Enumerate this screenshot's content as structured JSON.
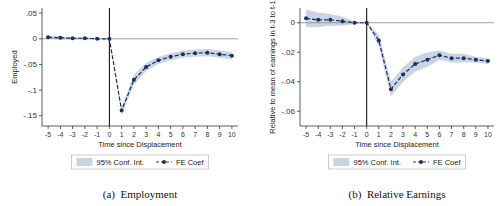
{
  "chart_data": [
    {
      "type": "line",
      "title": "(a)  Employment",
      "x_label": "Time since Displacement",
      "y_label": "Employed",
      "x": [
        -5,
        -4,
        -3,
        -2,
        -1,
        0,
        1,
        2,
        3,
        4,
        5,
        6,
        7,
        8,
        9,
        10
      ],
      "series": [
        {
          "name": "95% Conf. Int.",
          "type": "band",
          "color": "#b8c5dc",
          "lower": [
            0.0,
            -0.001,
            -0.001,
            -0.001,
            -0.001,
            0.0,
            -0.148,
            -0.09,
            -0.063,
            -0.049,
            -0.042,
            -0.037,
            -0.035,
            -0.034,
            -0.037,
            -0.04
          ],
          "upper": [
            0.006,
            0.005,
            0.003,
            0.003,
            0.001,
            0.0,
            -0.132,
            -0.07,
            -0.047,
            -0.035,
            -0.028,
            -0.023,
            -0.021,
            -0.02,
            -0.023,
            -0.026
          ]
        },
        {
          "name": "FE Coef",
          "type": "line",
          "color": "#1c3060",
          "marker": "circle",
          "line_style": "dashed",
          "values": [
            0.003,
            0.002,
            0.001,
            0.001,
            0.0,
            0.0,
            -0.14,
            -0.08,
            -0.055,
            -0.042,
            -0.035,
            -0.03,
            -0.028,
            -0.027,
            -0.03,
            -0.033
          ]
        }
      ],
      "hline": 0,
      "vline": 0,
      "xlim": [
        -5.5,
        10.5
      ],
      "xticks": [
        -5,
        -4,
        -3,
        -2,
        -1,
        0,
        1,
        2,
        3,
        4,
        5,
        6,
        7,
        8,
        9,
        10
      ],
      "ylim": [
        -0.17,
        0.06
      ],
      "yticks": [
        {
          "value": 0.05,
          "label": ".05"
        },
        0,
        {
          "value": -0.05,
          "label": "-.05"
        },
        {
          "value": -0.1,
          "label": "-.1"
        },
        {
          "value": -0.15,
          "label": "-.15"
        }
      ],
      "legend": "bottom",
      "grid": false
    },
    {
      "type": "line",
      "title": "(b)  Relative Earnings",
      "x_label": "Time since Displacement",
      "y_label": "Relative to mean of earnings in t-3 to t-1",
      "x": [
        -5,
        -4,
        -3,
        -2,
        -1,
        0,
        1,
        2,
        3,
        4,
        5,
        6,
        7,
        8,
        9,
        10
      ],
      "series": [
        {
          "name": "95% Conf. Int.",
          "type": "band",
          "color": "#b8c5dc",
          "lower": [
            -0.003,
            -0.003,
            -0.002,
            -0.002,
            -0.001,
            0.0,
            -0.016,
            -0.05,
            -0.04,
            -0.033,
            -0.03,
            -0.025,
            -0.027,
            -0.027,
            -0.027,
            -0.028
          ],
          "upper": [
            0.009,
            0.007,
            0.006,
            0.004,
            0.001,
            0.0,
            -0.008,
            -0.04,
            -0.03,
            -0.023,
            -0.02,
            -0.019,
            -0.021,
            -0.021,
            -0.023,
            -0.024
          ]
        },
        {
          "name": "FE Coef",
          "type": "line",
          "color": "#1c3060",
          "marker": "circle",
          "line_style": "dashed",
          "values": [
            0.003,
            0.002,
            0.002,
            0.001,
            0.0,
            0.0,
            -0.012,
            -0.045,
            -0.035,
            -0.028,
            -0.025,
            -0.022,
            -0.024,
            -0.024,
            -0.025,
            -0.026
          ]
        }
      ],
      "hline": 0,
      "vline": 0,
      "xlim": [
        -5.5,
        10.5
      ],
      "xticks": [
        -5,
        -4,
        -3,
        -2,
        -1,
        0,
        1,
        2,
        3,
        4,
        5,
        6,
        7,
        8,
        9,
        10
      ],
      "ylim": [
        -0.07,
        0.01
      ],
      "yticks": [
        0,
        {
          "value": -0.02,
          "label": "-.02"
        },
        {
          "value": -0.04,
          "label": "-.04"
        },
        {
          "value": -0.06,
          "label": "-.06"
        }
      ],
      "legend": "bottom",
      "grid": false
    }
  ]
}
